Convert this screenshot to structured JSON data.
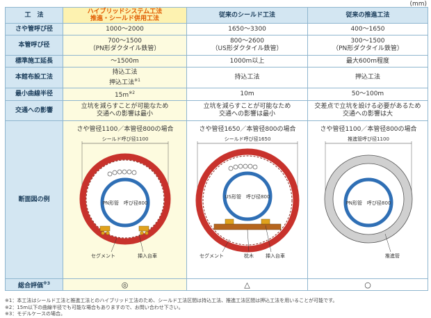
{
  "unit": "(mm)",
  "header": {
    "label": "工　法",
    "hybrid_line1": "ハイブリッドシステム工法",
    "hybrid_line2": "推進・シールド併用工法",
    "shield": "従来のシールド工法",
    "push": "従来の推進工法"
  },
  "rows": {
    "sheath": {
      "label": "さや管呼び径",
      "hybrid": "1000〜2000",
      "shield": "1650〜3300",
      "push": "400〜1650"
    },
    "main_pipe": {
      "label": "本管呼び径",
      "hybrid_l1": "700〜1500",
      "hybrid_l2": "（PN形ダクタイル鉄管）",
      "shield_l1": "800〜2600",
      "shield_l2": "（US形ダクタイル鉄管）",
      "push_l1": "300〜1500",
      "push_l2": "（PN形ダクタイル鉄管）"
    },
    "distance": {
      "label": "標準施工延長",
      "hybrid": "〜1500m",
      "shield": "1000m以上",
      "push": "最大600m程度"
    },
    "install": {
      "label": "本館布設工法",
      "hybrid_l1": "持込工法",
      "hybrid_l2": "押込工法",
      "hybrid_l2_sup": "※1",
      "shield": "持込工法",
      "push": "押込工法"
    },
    "radius": {
      "label": "最小曲線半径",
      "hybrid": "15m",
      "hybrid_sup": "※2",
      "shield": "10m",
      "push": "50〜100m"
    },
    "traffic": {
      "label": "交通への影響",
      "hybrid_l1": "立坑を減らすことが可能なため",
      "hybrid_l2": "交通への影響は最小",
      "shield_l1": "立坑を減らすことが可能なため",
      "shield_l2": "交通への影響は最小",
      "push_l1": "交差点で立坑を設ける必要があるため",
      "push_l2": "交通への影響は大"
    },
    "section": {
      "label": "断面図の例",
      "hybrid": {
        "title": "さや管径1100／本管径800の場合",
        "dim": "シールド呼び径1100",
        "inner": "PN形管　呼び径800",
        "callout1": "セグメント",
        "callout2": "挿入台車"
      },
      "shield": {
        "title": "さや管径1650／本管径800の場合",
        "dim": "シールド呼び径1650",
        "inner": "US形管　呼び径800",
        "callout1": "セグメント",
        "callout2": "枕木",
        "callout3": "挿入台車"
      },
      "push": {
        "title": "さや管径1100／本管径800の場合",
        "dim": "推進管呼び径1100",
        "inner": "PN形管　呼び径800",
        "callout1": "推進管"
      }
    },
    "eval": {
      "label": "総合評価",
      "label_sup": "※3",
      "hybrid": "◎",
      "shield": "△",
      "push": "○"
    }
  },
  "notes": [
    "※1：本工法はシールド工法と推進工法とのハイブリッド工法のため、シールド工法区間は持込工法、推進工法区間は押込工法を用いることが可能です。",
    "※2：15m以下の曲線半径でも可能な場合もありますので、お問い合わせ下さい。",
    "※3：モデルケースの場合。"
  ],
  "colors": {
    "header_bg": "#d3e6f2",
    "hybrid_header_bg": "#fdf2b0",
    "hybrid_col_bg": "#fdfbdf",
    "hybrid_text": "#e05a00",
    "border": "#8fb6cf",
    "segment_red": "#c8322c",
    "push_pipe_gray": "#d0d0d0",
    "main_pipe_blue": "#2f6fb5"
  }
}
